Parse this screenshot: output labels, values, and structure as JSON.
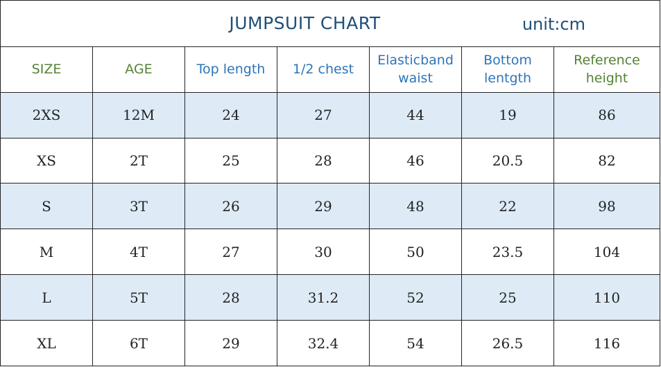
{
  "title": "JUMPSUIT CHART",
  "unit": "unit:cm",
  "colors": {
    "title": "#1f4e79",
    "green_header": "#548235",
    "blue_header": "#2e75b6",
    "shaded_row": "#deebf7",
    "border": "#222222"
  },
  "headers": [
    {
      "label": "SIZE",
      "color": "#548235"
    },
    {
      "label": "AGE",
      "color": "#548235"
    },
    {
      "label": "Top length",
      "color": "#2e75b6"
    },
    {
      "label": "1/2 chest",
      "color": "#2e75b6"
    },
    {
      "label": "Elasticband\nwaist",
      "color": "#2e75b6"
    },
    {
      "label": "Bottom\nlentgth",
      "color": "#2e75b6"
    },
    {
      "label": "Reference\nheight",
      "color": "#548235"
    }
  ],
  "rows": [
    [
      "2XS",
      "12M",
      "24",
      "27",
      "44",
      "19",
      "86"
    ],
    [
      "XS",
      "2T",
      "25",
      "28",
      "46",
      "20.5",
      "82"
    ],
    [
      "S",
      "3T",
      "26",
      "29",
      "48",
      "22",
      "98"
    ],
    [
      "M",
      "4T",
      "27",
      "30",
      "50",
      "23.5",
      "104"
    ],
    [
      "L",
      "5T",
      "28",
      "31.2",
      "52",
      "25",
      "110"
    ],
    [
      "XL",
      "6T",
      "29",
      "32.4",
      "54",
      "26.5",
      "116"
    ]
  ]
}
